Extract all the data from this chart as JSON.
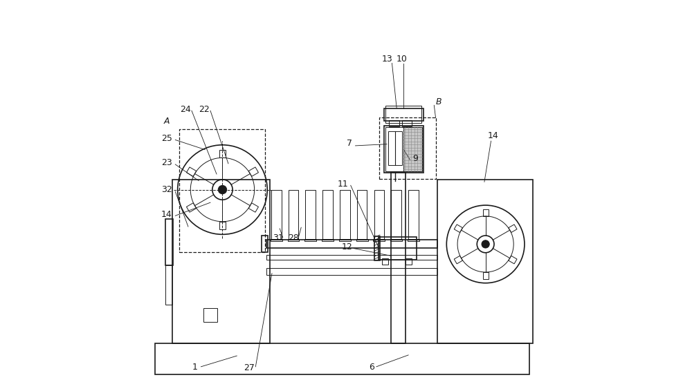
{
  "bg_color": "#ffffff",
  "line_color": "#1a1a1a",
  "line_width": 1.2,
  "thin_line": 0.7,
  "thick_line": 1.5,
  "fig_width": 10.0,
  "fig_height": 5.66
}
